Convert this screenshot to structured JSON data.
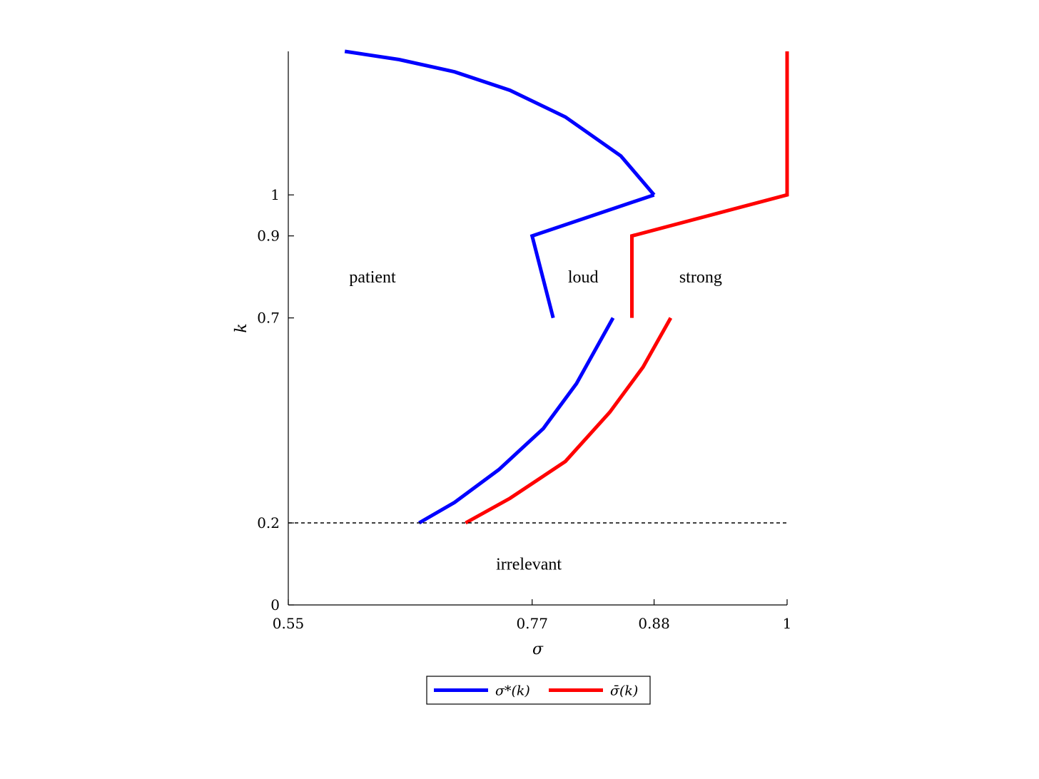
{
  "chart_data": {
    "type": "line",
    "title": "",
    "xlabel": "σ",
    "ylabel": "k",
    "xlim": [
      0.55,
      1.0
    ],
    "ylim": [
      0,
      1.35
    ],
    "xticks": [
      {
        "value": 0.55,
        "label": "0.55"
      },
      {
        "value": 0.77,
        "label": "0.77"
      },
      {
        "value": 0.88,
        "label": "0.88"
      },
      {
        "value": 1.0,
        "label": "1"
      }
    ],
    "yticks": [
      {
        "value": 0,
        "label": "0"
      },
      {
        "value": 0.2,
        "label": "0.2"
      },
      {
        "value": 0.7,
        "label": "0.7"
      },
      {
        "value": 0.9,
        "label": "0.9"
      },
      {
        "value": 1.0,
        "label": "1"
      }
    ],
    "grid": false,
    "legend_position": "bottom-center",
    "series": [
      {
        "name": "σ*(k)",
        "color": "#0000ff",
        "segments": [
          [
            [
              0.601,
              1.35
            ],
            [
              0.65,
              1.33
            ],
            [
              0.7,
              1.3
            ],
            [
              0.75,
              1.255
            ],
            [
              0.8,
              1.19
            ],
            [
              0.85,
              1.095
            ],
            [
              0.88,
              1.0
            ]
          ],
          [
            [
              0.88,
              1.0
            ],
            [
              0.77,
              0.9
            ],
            [
              0.789,
              0.7
            ]
          ],
          [
            [
              0.668,
              0.2
            ],
            [
              0.7,
              0.25
            ],
            [
              0.74,
              0.33
            ],
            [
              0.78,
              0.43
            ],
            [
              0.81,
              0.54
            ],
            [
              0.843,
              0.7
            ]
          ]
        ]
      },
      {
        "name": "σ̄(k)",
        "color": "#ff0000",
        "segments": [
          [
            [
              1.0,
              1.35
            ],
            [
              1.0,
              1.0
            ],
            [
              0.86,
              0.9
            ],
            [
              0.86,
              0.7
            ]
          ],
          [
            [
              0.71,
              0.2
            ],
            [
              0.75,
              0.26
            ],
            [
              0.8,
              0.35
            ],
            [
              0.84,
              0.47
            ],
            [
              0.87,
              0.58
            ],
            [
              0.895,
              0.7
            ]
          ]
        ]
      }
    ],
    "reference_line": {
      "y": 0.2,
      "style": "dashed",
      "color": "#000000"
    },
    "annotations": [
      {
        "text": "patient",
        "x": 0.626,
        "y": 0.8
      },
      {
        "text": "loud",
        "x": 0.816,
        "y": 0.8
      },
      {
        "text": "strong",
        "x": 0.922,
        "y": 0.8
      },
      {
        "text": "irrelevant",
        "x": 0.767,
        "y": 0.1
      }
    ]
  }
}
